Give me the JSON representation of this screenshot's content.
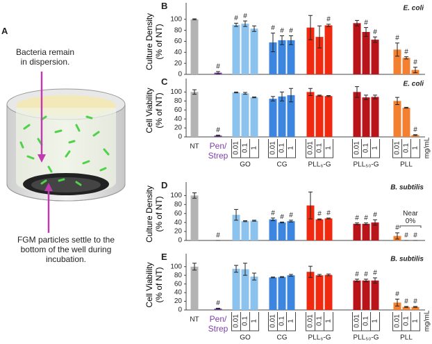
{
  "panel_a": {
    "label": "A",
    "top_text": "Bacteria remain\nin dispersion.",
    "bottom_text": "FGM particles settle to the\nbottom of the well during\nincubation."
  },
  "chart_data": [
    {
      "type": "bar",
      "panel_label": "B",
      "title": "E. coli",
      "ylabel": "Culture Density\n(% of NT)",
      "values": [
        100,
        3,
        90,
        92,
        83,
        58,
        62,
        62,
        85,
        68,
        89,
        93,
        77,
        63,
        45,
        30,
        8
      ],
      "errors": [
        1,
        2,
        3,
        5,
        5,
        17,
        8,
        8,
        22,
        20,
        2,
        5,
        8,
        5,
        12,
        2,
        5
      ],
      "annotations": [
        null,
        "#",
        "#",
        "#",
        null,
        "#",
        "#",
        "#",
        null,
        null,
        "#",
        null,
        "#",
        "#",
        "#",
        "#",
        "#"
      ],
      "colors": [
        "#b3b3b3",
        "#7b3fa8",
        "#8cc3ee",
        "#8cc3ee",
        "#8cc3ee",
        "#3d86e0",
        "#3d86e0",
        "#3d86e0",
        "#f02a10",
        "#f02a10",
        "#f02a10",
        "#b8141a",
        "#b8141a",
        "#b8141a",
        "#f28030",
        "#f28030",
        "#f28030"
      ],
      "ylim": [
        0,
        130
      ],
      "yticks": [
        0,
        20,
        40,
        60,
        80,
        100
      ]
    },
    {
      "type": "bar",
      "panel_label": "C",
      "title": "E. coli",
      "ylabel": "Cell Viability\n(% of NT)",
      "values": [
        100,
        3,
        99,
        97,
        88,
        85,
        90,
        93,
        100,
        92,
        91,
        100,
        88,
        89,
        80,
        65,
        4
      ],
      "errors": [
        5,
        1,
        1,
        2,
        1,
        5,
        10,
        15,
        8,
        1,
        1,
        12,
        5,
        4,
        8,
        1,
        1
      ],
      "annotations": [
        null,
        "#",
        null,
        null,
        null,
        null,
        null,
        null,
        null,
        null,
        null,
        null,
        null,
        null,
        null,
        null,
        "#"
      ],
      "colors": [
        "#b3b3b3",
        "#7b3fa8",
        "#8cc3ee",
        "#8cc3ee",
        "#8cc3ee",
        "#3d86e0",
        "#3d86e0",
        "#3d86e0",
        "#f02a10",
        "#f02a10",
        "#f02a10",
        "#b8141a",
        "#b8141a",
        "#b8141a",
        "#f28030",
        "#f28030",
        "#f28030"
      ],
      "ylim": [
        0,
        130
      ],
      "yticks": [
        0,
        20,
        40,
        60,
        80,
        100
      ],
      "categories": [
        "NT",
        "Pen/\nStrep",
        "0.01",
        "0.1",
        "1",
        "0.01",
        "0.1",
        "1",
        "0.01",
        "0.1",
        "1",
        "0.01",
        "0.1",
        "1",
        "0.01",
        "0.1",
        "1"
      ],
      "groups": [
        "GO",
        "CG",
        "PLL₆-G",
        "PLL₅₀-G",
        "PLL"
      ],
      "unit": "mg/mL"
    },
    {
      "type": "bar",
      "panel_label": "D",
      "title": "B. subtilis",
      "ylabel": "Culture Density\n(% of NT)",
      "values": [
        100,
        0,
        57,
        43,
        44,
        47,
        40,
        43,
        78,
        47,
        49,
        37,
        37,
        40,
        10,
        0,
        0
      ],
      "errors": [
        6,
        0,
        12,
        1,
        1,
        3,
        1,
        2,
        30,
        1,
        1,
        2,
        2,
        6,
        7,
        0,
        0
      ],
      "annotations": [
        null,
        "#",
        null,
        null,
        null,
        "#",
        "#",
        "#",
        null,
        "#",
        "#",
        "#",
        "#",
        "#",
        "#",
        "#",
        "#"
      ],
      "colors": [
        "#b3b3b3",
        "#7b3fa8",
        "#8cc3ee",
        "#8cc3ee",
        "#8cc3ee",
        "#3d86e0",
        "#3d86e0",
        "#3d86e0",
        "#f02a10",
        "#f02a10",
        "#f02a10",
        "#b8141a",
        "#b8141a",
        "#b8141a",
        "#f28030",
        "#f28030",
        "#f28030"
      ],
      "ylim": [
        0,
        130
      ],
      "yticks": [
        0,
        20,
        40,
        60,
        80,
        100
      ],
      "note": "Near\n0%"
    },
    {
      "type": "bar",
      "panel_label": "E",
      "title": "B. subtilis",
      "ylabel": "Cell Viability\n(% of NT)",
      "values": [
        100,
        3,
        95,
        94,
        77,
        75,
        76,
        80,
        88,
        80,
        81,
        68,
        68,
        68,
        17,
        7,
        7
      ],
      "errors": [
        8,
        1,
        8,
        14,
        8,
        1,
        1,
        2,
        13,
        2,
        2,
        3,
        3,
        6,
        8,
        1,
        1
      ],
      "annotations": [
        null,
        "#",
        null,
        null,
        null,
        null,
        null,
        null,
        null,
        null,
        null,
        "#",
        "#",
        "#",
        "#",
        "#",
        "#"
      ],
      "colors": [
        "#b3b3b3",
        "#7b3fa8",
        "#8cc3ee",
        "#8cc3ee",
        "#8cc3ee",
        "#3d86e0",
        "#3d86e0",
        "#3d86e0",
        "#f02a10",
        "#f02a10",
        "#f02a10",
        "#b8141a",
        "#b8141a",
        "#b8141a",
        "#f28030",
        "#f28030",
        "#f28030"
      ],
      "ylim": [
        0,
        130
      ],
      "yticks": [
        0,
        20,
        40,
        60,
        80,
        100
      ],
      "categories": [
        "NT",
        "Pen/\nStrep",
        "0.01",
        "0.1",
        "1",
        "0.01",
        "0.1",
        "1",
        "0.01",
        "0.1",
        "1",
        "0.01",
        "0.1",
        "1",
        "0.01",
        "0.1",
        "1"
      ],
      "groups": [
        "GO",
        "CG",
        "PLL₆-G",
        "PLL₅₀-G",
        "PLL"
      ],
      "unit": "mg/mL"
    }
  ]
}
